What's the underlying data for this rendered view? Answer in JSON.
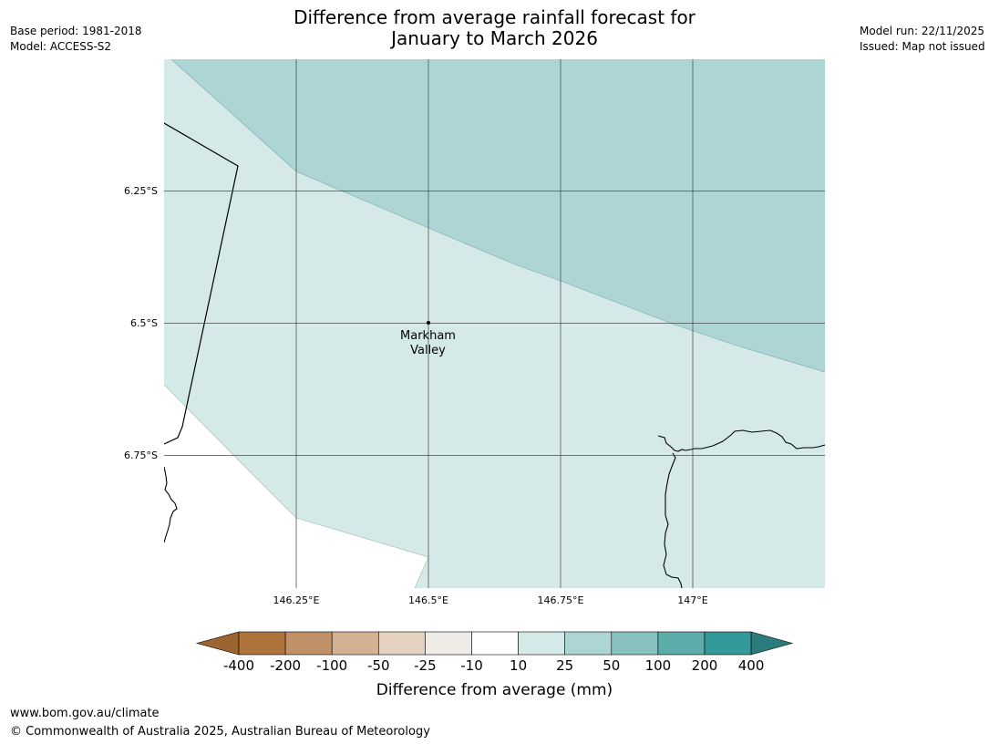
{
  "title": {
    "line1": "Difference from average rainfall forecast for",
    "line2": "January to March 2026"
  },
  "meta_left": {
    "base_period": "Base period: 1981-2018",
    "model": "Model: ACCESS-S2"
  },
  "meta_right": {
    "model_run": "Model run: 22/11/2025",
    "issued": "Issued: Map not issued"
  },
  "map": {
    "lat_labels": [
      "6.25°S",
      "6.5°S",
      "6.75°S"
    ],
    "lon_labels": [
      "146.25°E",
      "146.5°E",
      "146.75°E",
      "147°E"
    ],
    "place": {
      "line1": "Markham",
      "line2": "Valley"
    },
    "region_colors": {
      "band_25_50": "#aed5d5",
      "band_10_25": "#d5e9e8",
      "band_minus10_10": "#ffffff"
    }
  },
  "legend": {
    "title": "Difference from average (mm)",
    "ticks": [
      "-400",
      "-200",
      "-100",
      "-50",
      "-25",
      "-10",
      "10",
      "25",
      "50",
      "100",
      "200",
      "400"
    ],
    "colors": [
      "#9c6431",
      "#ae743b",
      "#c09169",
      "#d3b192",
      "#e4d1bf",
      "#efebe7",
      "#ffffff",
      "#d5e9e8",
      "#aed5d5",
      "#89c1bf",
      "#5cacaa",
      "#33999a",
      "#2b7d7d"
    ]
  },
  "footer": {
    "url": "www.bom.gov.au/climate",
    "copyright": "© Commonwealth of Australia 2025, Australian Bureau of Meteorology"
  }
}
